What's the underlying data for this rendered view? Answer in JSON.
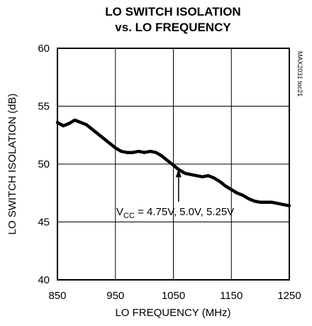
{
  "chart_data": {
    "type": "line",
    "title_lines": [
      "LO SWITCH ISOLATION",
      "vs. LO FREQUENCY"
    ],
    "xlabel": "LO FREQUENCY (MHz)",
    "ylabel": "LO SWITCH ISOLATION (dB)",
    "xlim": [
      850,
      1250
    ],
    "ylim": [
      40,
      60
    ],
    "xticks": [
      850,
      950,
      1050,
      1150,
      1250
    ],
    "yticks": [
      40,
      45,
      50,
      55,
      60
    ],
    "grid": true,
    "part_number": "MAX2031 toc21",
    "annotation": {
      "prefix": "V",
      "subscript": "CC",
      "text": " = 4.75V, 5.0V, 5.25V",
      "arrow_to": [
        1059,
        49.6
      ]
    },
    "series": [
      {
        "x": [
          850,
          860,
          870,
          880,
          890,
          900,
          910,
          920,
          930,
          940,
          950,
          960,
          970,
          980,
          990,
          1000,
          1010,
          1020,
          1030,
          1040,
          1050,
          1060,
          1070,
          1080,
          1090,
          1100,
          1110,
          1120,
          1130,
          1140,
          1150,
          1160,
          1170,
          1180,
          1190,
          1200,
          1210,
          1220,
          1230,
          1240,
          1250
        ],
        "y": [
          53.6,
          53.3,
          53.5,
          53.8,
          53.6,
          53.4,
          53.0,
          52.6,
          52.2,
          51.8,
          51.4,
          51.1,
          51.0,
          51.0,
          51.1,
          51.0,
          51.1,
          51.0,
          50.7,
          50.3,
          49.9,
          49.5,
          49.2,
          49.1,
          49.0,
          48.9,
          49.0,
          48.8,
          48.5,
          48.1,
          47.8,
          47.5,
          47.3,
          47.0,
          46.8,
          46.7,
          46.7,
          46.7,
          46.6,
          46.5,
          46.4
        ],
        "color": "#000000"
      }
    ]
  }
}
